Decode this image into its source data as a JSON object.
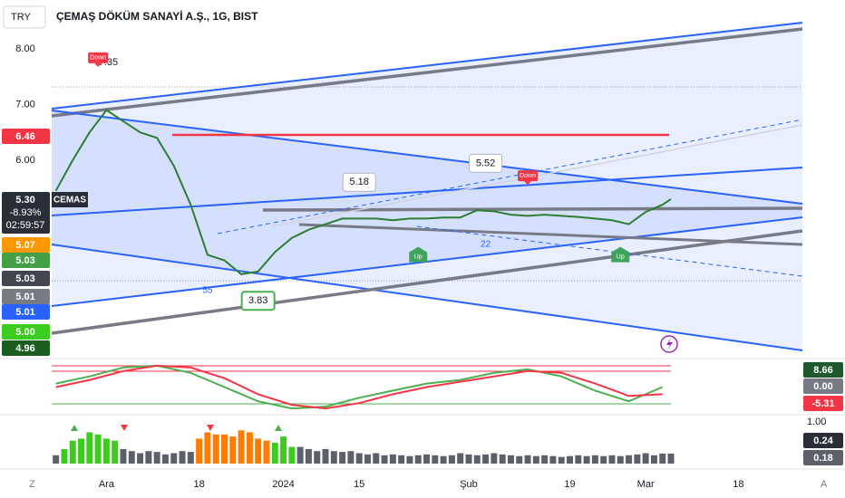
{
  "toolbar": {
    "currency": "TRY",
    "corner_left": "Z",
    "corner_right": "A"
  },
  "chart_data": [
    {
      "type": "line",
      "title": "ÇEMAŞ DÖKÜM SANAYİ A.Ş., 1G, BIST",
      "xlim": [
        -6.5,
        82.6
      ],
      "ylim": [
        2.45,
        8.88
      ],
      "yticks": [
        {
          "value": 8,
          "label": "8.00"
        },
        {
          "value": 7,
          "label": "7.00"
        },
        {
          "value": 6,
          "label": "6.00"
        }
      ],
      "x": [
        -6,
        -4,
        -2,
        0,
        2,
        4,
        6,
        8,
        10,
        12,
        14,
        16,
        18,
        20,
        22,
        24,
        26,
        28,
        30,
        32,
        34,
        36,
        38,
        40,
        42,
        44,
        46,
        48,
        50,
        52,
        54,
        56,
        58,
        60,
        62,
        64,
        66,
        67
      ],
      "series": [
        {
          "name": "CEMAS",
          "color": "#2e7d32",
          "values": [
            5.45,
            6.0,
            6.5,
            6.9,
            6.7,
            6.5,
            6.4,
            5.9,
            5.2,
            4.3,
            4.2,
            3.95,
            4.0,
            4.35,
            4.6,
            4.75,
            4.85,
            4.95,
            4.95,
            4.95,
            4.92,
            4.95,
            4.95,
            4.97,
            4.97,
            5.1,
            5.08,
            5.02,
            5.0,
            5.02,
            5.0,
            4.98,
            4.95,
            4.92,
            4.85,
            5.07,
            5.2,
            5.3
          ]
        }
      ],
      "last_change": "-8.93%",
      "countdown": "02:59:57",
      "price_labels": [
        {
          "value": 6.46,
          "label": "6.46",
          "color": "#f23645"
        },
        {
          "value": 5.3,
          "label": "5.30",
          "color": "#2a2e39"
        },
        {
          "value": 5.07,
          "label": "5.07",
          "color": "#ff9800"
        },
        {
          "value": 5.03,
          "label": "5.03",
          "color": "#43a047"
        },
        {
          "value": 5.03,
          "label": "5.03",
          "color": "#434651"
        },
        {
          "value": 5.01,
          "label": "5.01",
          "color": "#787b86"
        },
        {
          "value": 5.01,
          "label": "5.01",
          "color": "#2962ff"
        },
        {
          "value": 5.0,
          "label": "5.00",
          "color": "#3ccc1e"
        },
        {
          "value": 4.96,
          "label": "4.96",
          "color": "#1b5e20"
        }
      ],
      "high_low": [
        {
          "x": 0,
          "value": 7.35,
          "side": "high"
        },
        {
          "x": 30,
          "value": 5.18,
          "side": "high"
        },
        {
          "x": 45,
          "value": 5.52,
          "side": "high"
        },
        {
          "x": 18,
          "value": 3.83,
          "side": "low"
        }
      ],
      "markers": [
        {
          "x": -1,
          "price": 7.84,
          "text": "Down",
          "color": "#f23645"
        },
        {
          "x": 50,
          "price": 5.72,
          "text": "Down",
          "color": "#f23645"
        },
        {
          "x": 37,
          "price": 4.28,
          "text": "Up",
          "color": "#3fa35a"
        },
        {
          "x": 61,
          "price": 4.28,
          "text": "Up",
          "color": "#3fa35a"
        },
        {
          "x": 12,
          "price": 3.66,
          "text": "55",
          "color": "#2962ff"
        },
        {
          "x": 45,
          "price": 4.49,
          "text": "22",
          "color": "#2962ff"
        }
      ]
    },
    {
      "type": "line",
      "xlim": [
        -6.5,
        82.6
      ],
      "ylim": [
        -14,
        14
      ],
      "x": [
        -6,
        -2,
        2,
        6,
        10,
        14,
        18,
        22,
        26,
        30,
        34,
        38,
        42,
        46,
        50,
        54,
        58,
        62,
        66
      ],
      "series": [
        {
          "color": "#4caf50",
          "values": [
            2,
            6,
            11,
            12,
            8,
            0,
            -8,
            -12,
            -11,
            -6,
            -2,
            2,
            4,
            8,
            10,
            6,
            -2,
            -8,
            0
          ]
        },
        {
          "color": "#f23645",
          "values": [
            0,
            4,
            9,
            12,
            11,
            5,
            -4,
            -10,
            -12,
            -9,
            -4,
            0,
            3,
            6,
            9,
            8,
            2,
            -5,
            -4
          ]
        }
      ],
      "price_labels": [
        {
          "value": 8.66,
          "label": "8.66",
          "color": "#1e5a2e"
        },
        {
          "value": 0,
          "label": "0.00",
          "color": "#787b86"
        },
        {
          "value": -5.31,
          "label": "-5.31",
          "color": "#f23645"
        }
      ]
    },
    {
      "type": "bar",
      "xlim": [
        -6.5,
        82.6
      ],
      "ylim": [
        0,
        1
      ],
      "yticks": [
        {
          "value": 1,
          "label": "1.00"
        }
      ],
      "xticks": [
        {
          "value": 0,
          "label": "Ara"
        },
        {
          "value": 11,
          "label": "18"
        },
        {
          "value": 21,
          "label": "2024"
        },
        {
          "value": 30,
          "label": "15"
        },
        {
          "value": 43,
          "label": "Şub"
        },
        {
          "value": 55,
          "label": "19"
        },
        {
          "value": 64,
          "label": "Mar"
        },
        {
          "value": 75,
          "label": "18"
        }
      ],
      "series": [
        {
          "color": "#3ccc1e",
          "x": [
            -5,
            -4,
            -3,
            -2,
            -1,
            0,
            1,
            20,
            21,
            22
          ],
          "values": [
            0.35,
            0.55,
            0.6,
            0.75,
            0.7,
            0.6,
            0.55,
            0.5,
            0.65,
            0.4
          ]
        },
        {
          "color": "#ff7b00",
          "x": [
            11,
            12,
            13,
            14,
            15,
            16,
            17,
            18,
            19
          ],
          "values": [
            0.6,
            0.75,
            0.7,
            0.7,
            0.65,
            0.8,
            0.75,
            0.6,
            0.55
          ]
        },
        {
          "color": "#5d606b",
          "x": [
            -6,
            2,
            3,
            4,
            5,
            6,
            7,
            8,
            9,
            10,
            23,
            24,
            25,
            26,
            27,
            28,
            29,
            30,
            31,
            32,
            33,
            34,
            35,
            36,
            37,
            38,
            39,
            40,
            41,
            42,
            43,
            44,
            45,
            46,
            47,
            48,
            49,
            50,
            51,
            52,
            53,
            54,
            55,
            56,
            57,
            58,
            59,
            60,
            61,
            62,
            63,
            64,
            65,
            66,
            67
          ],
          "values": [
            0.2,
            0.35,
            0.3,
            0.25,
            0.3,
            0.28,
            0.22,
            0.25,
            0.3,
            0.28,
            0.4,
            0.35,
            0.3,
            0.35,
            0.3,
            0.28,
            0.3,
            0.25,
            0.22,
            0.25,
            0.2,
            0.22,
            0.2,
            0.18,
            0.2,
            0.22,
            0.2,
            0.18,
            0.2,
            0.25,
            0.22,
            0.2,
            0.22,
            0.25,
            0.22,
            0.2,
            0.18,
            0.2,
            0.18,
            0.2,
            0.18,
            0.16,
            0.18,
            0.2,
            0.18,
            0.2,
            0.18,
            0.2,
            0.18,
            0.2,
            0.22,
            0.25,
            0.2,
            0.24,
            0.24
          ]
        }
      ],
      "price_labels": [
        {
          "value": 0.24,
          "label": "0.24",
          "color": "#2a2e39"
        },
        {
          "value": 0.18,
          "label": "0.18",
          "color": "#5d606b"
        }
      ]
    }
  ]
}
